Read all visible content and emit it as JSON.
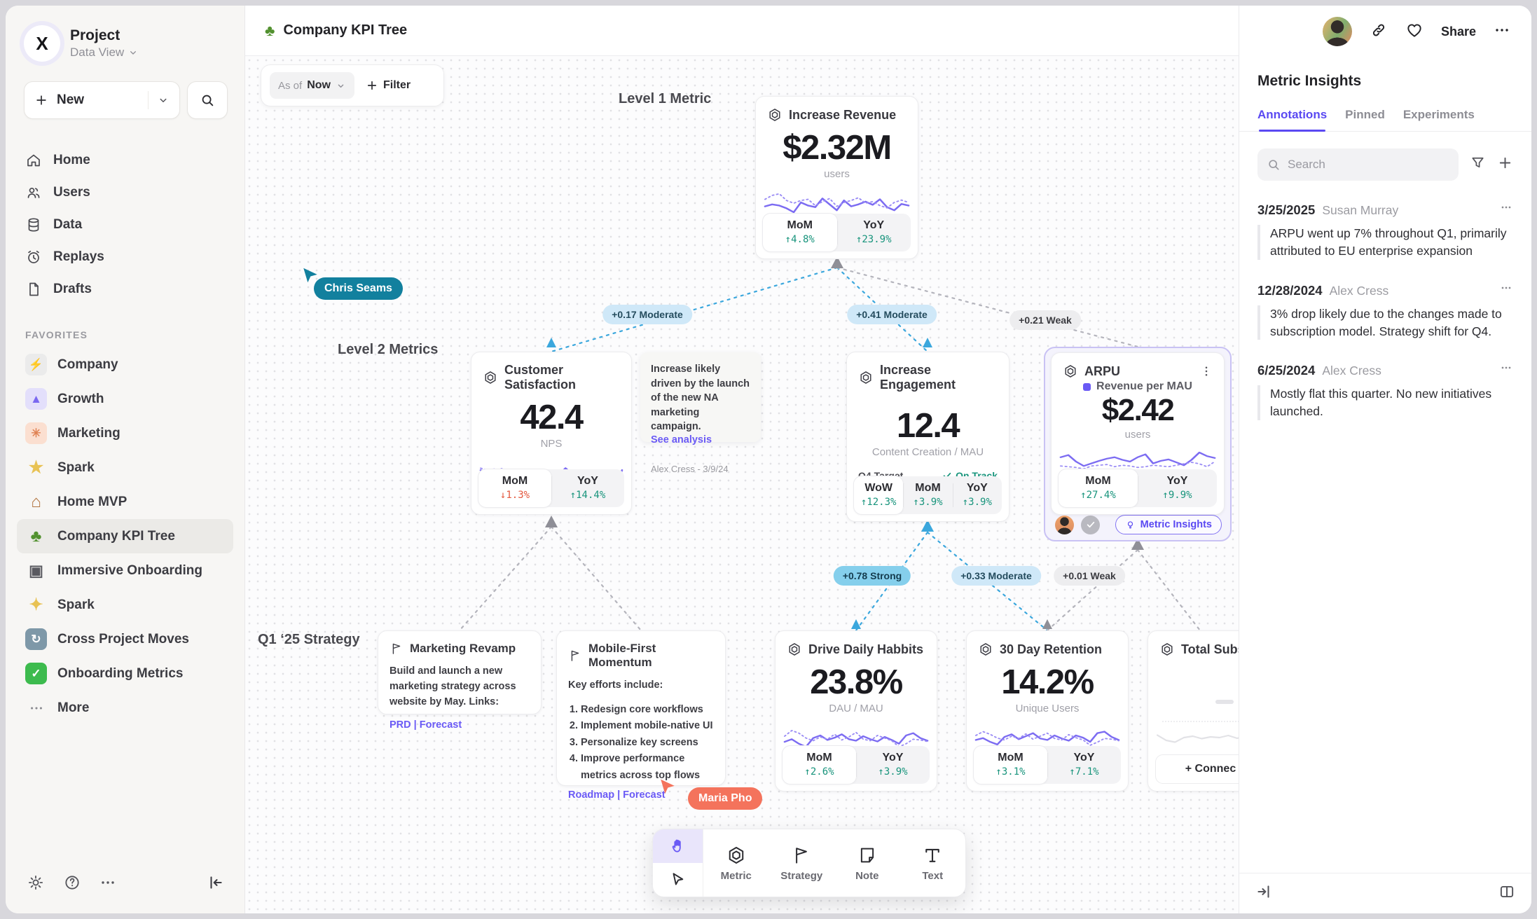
{
  "sidebar": {
    "project": {
      "logo_glyph": "X",
      "title": "Project",
      "subtitle": "Data View"
    },
    "new_label": "New",
    "nav": [
      {
        "label": "Home"
      },
      {
        "label": "Users"
      },
      {
        "label": "Data"
      },
      {
        "label": "Replays"
      },
      {
        "label": "Drafts"
      }
    ],
    "favorites_label": "FAVORITES",
    "favorites": [
      {
        "icon": "zap",
        "glyph": "⚡",
        "label": "Company",
        "tile": "#ebebeb",
        "fg": "#5a5a60"
      },
      {
        "icon": "rocket",
        "glyph": "▲",
        "label": "Growth",
        "tile": "#e3dffb",
        "fg": "#7a68f0"
      },
      {
        "icon": "confetti",
        "glyph": "✳",
        "label": "Marketing",
        "tile": "#fbdfd0",
        "fg": "#e08354"
      },
      {
        "icon": "star",
        "glyph": "★",
        "label": "Spark",
        "tile": "transparent",
        "fg": "#e8c254"
      },
      {
        "icon": "house",
        "glyph": "⌂",
        "label": "Home MVP",
        "tile": "transparent",
        "fg": "#b2743f"
      },
      {
        "icon": "tree",
        "glyph": "♣",
        "label": "Company KPI Tree",
        "tile": "transparent",
        "fg": "#52912f"
      },
      {
        "icon": "train",
        "glyph": "▣",
        "label": "Immersive Onboarding",
        "tile": "transparent",
        "fg": "#5a5a60"
      },
      {
        "icon": "sparkles",
        "glyph": "✦",
        "label": "Spark",
        "tile": "transparent",
        "fg": "#e8c254"
      },
      {
        "icon": "cyclone",
        "glyph": "↻",
        "label": "Cross Project Moves",
        "tile": "#7e98a8",
        "fg": "#ffffff"
      },
      {
        "icon": "check",
        "glyph": "✓",
        "label": "Onboarding Metrics",
        "tile": "#3dbb4e",
        "fg": "#ffffff"
      }
    ],
    "more_label": "More"
  },
  "topbar": {
    "tree_glyph": "♣",
    "title": "Company KPI Tree",
    "share_label": "Share"
  },
  "canvas": {
    "asof_label": "As of",
    "asof_value": "Now",
    "filter_label": "Filter",
    "level1_label": "Level 1 Metric",
    "level2_label": "Level 2 Metrics",
    "q1_label": "Q1 ‘25 Strategy",
    "cursors": [
      {
        "name": "Chris Seams",
        "color": "#12809e"
      },
      {
        "name": "Maria Pho",
        "color": "#f4735c"
      }
    ],
    "edges": [
      {
        "label": "+0.17 Moderate"
      },
      {
        "label": "+0.41 Moderate"
      },
      {
        "label": "+0.21 Weak"
      },
      {
        "label": "+0.78 Strong"
      },
      {
        "label": "+0.33 Moderate"
      },
      {
        "label": "+0.01 Weak"
      }
    ],
    "cards": {
      "revenue": {
        "title": "Increase Revenue",
        "value": "$2.32M",
        "unit": "users",
        "stats": [
          {
            "label": "MoM",
            "value": "↑4.8%"
          },
          {
            "label": "YoY",
            "value": "↑23.9%"
          }
        ],
        "spark": [
          [
            40,
            45,
            42,
            35,
            25,
            50,
            42,
            38,
            60,
            45,
            30,
            55,
            40,
            45,
            52,
            44,
            58,
            38,
            30,
            46,
            42
          ],
          [
            58,
            68,
            72,
            55,
            48,
            55,
            58,
            42,
            52,
            60,
            40,
            50,
            55,
            62,
            48,
            52,
            42,
            36,
            50,
            56,
            50
          ]
        ]
      },
      "satisfaction": {
        "title": "Customer Satisfaction",
        "value": "42.4",
        "unit": "NPS",
        "stats": [
          {
            "label": "MoM",
            "value": "↓1.3%"
          },
          {
            "label": "YoY",
            "value": "↑14.4%"
          }
        ],
        "spark": [
          [
            55,
            48,
            52,
            58,
            40,
            30,
            22,
            45,
            38,
            52,
            35,
            42,
            60,
            45,
            50,
            48,
            52,
            38,
            25,
            20,
            55
          ],
          [
            60,
            55,
            58,
            52,
            48,
            45,
            42,
            40,
            44,
            48,
            45,
            42,
            55,
            48,
            46,
            50,
            48,
            40,
            36,
            40,
            52
          ]
        ]
      },
      "note": {
        "text": "Increase likely driven by the launch of the new NA marketing campaign.",
        "link": "See analysis",
        "author": "Alex Cress - 3/9/24"
      },
      "engagement": {
        "title": "Increase Engagement",
        "value": "12.4",
        "unit": "Content Creation / MAU",
        "target_label": "Q4 Target",
        "target_status": "On Track",
        "target_pct": 28,
        "stats": [
          {
            "label": "WoW",
            "value": "↑12.3%"
          },
          {
            "label": "MoM",
            "value": "↑3.9%"
          },
          {
            "label": "YoY",
            "value": "↑3.9%"
          }
        ]
      },
      "arpu": {
        "title": "ARPU",
        "legend": "Revenue per MAU",
        "value": "$2.42",
        "unit": "users",
        "stats": [
          {
            "label": "MoM",
            "value": "↑27.4%"
          },
          {
            "label": "YoY",
            "value": "↑9.9%"
          }
        ],
        "insights_label": "Metric Insights",
        "spark": [
          [
            62,
            68,
            50,
            38,
            45,
            52,
            58,
            62,
            55,
            50,
            62,
            70,
            45,
            52,
            56,
            48,
            40,
            55,
            75,
            65,
            60
          ],
          [
            38,
            36,
            34,
            30,
            38,
            40,
            42,
            36,
            40,
            38,
            34,
            36,
            40,
            38,
            36,
            40,
            44,
            48,
            44,
            36,
            50
          ]
        ]
      },
      "marketing_revamp": {
        "title": "Marketing Revamp",
        "body": "Build and launch a new marketing strategy across website by May. Links:",
        "links_label": "PRD | Forecast"
      },
      "mobile_first": {
        "title": "Mobile-First Momentum",
        "intro": "Key efforts include:",
        "items": [
          "Redesign core workflows",
          "Implement mobile-native UI",
          "Personalize key screens",
          "Improve performance metrics across top flows"
        ],
        "links_label": "Roadmap | Forecast"
      },
      "daily_habits": {
        "title": "Drive Daily Habbits",
        "value": "23.8%",
        "unit": "DAU / MAU",
        "stats": [
          {
            "label": "MoM",
            "value": "↑2.6%"
          },
          {
            "label": "YoY",
            "value": "↑3.9%"
          }
        ],
        "spark": [
          [
            35,
            42,
            30,
            22,
            45,
            52,
            40,
            46,
            55,
            42,
            38,
            50,
            42,
            36,
            48,
            40,
            30,
            52,
            58,
            45,
            38
          ],
          [
            50,
            65,
            58,
            45,
            38,
            48,
            42,
            55,
            40,
            48,
            60,
            42,
            38,
            52,
            45,
            38,
            22,
            30,
            42,
            40,
            36
          ]
        ]
      },
      "retention": {
        "title": "30 Day Retention",
        "value": "14.2%",
        "unit": "Unique Users",
        "stats": [
          {
            "label": "MoM",
            "value": "↑3.1%"
          },
          {
            "label": "YoY",
            "value": "↑7.1%"
          }
        ],
        "spark": [
          [
            40,
            45,
            35,
            28,
            48,
            55,
            42,
            50,
            58,
            44,
            40,
            52,
            44,
            38,
            52,
            46,
            35,
            58,
            62,
            48,
            40
          ],
          [
            52,
            62,
            55,
            45,
            40,
            50,
            44,
            56,
            42,
            50,
            58,
            44,
            40,
            54,
            46,
            40,
            26,
            34,
            44,
            42,
            38
          ]
        ]
      },
      "subscriptions": {
        "title": "Total Subscript",
        "connect_label": "+ Connec",
        "spark": [
          [
            45,
            30,
            25,
            38,
            42,
            35,
            40,
            38,
            44,
            36,
            42,
            46,
            40
          ]
        ]
      }
    }
  },
  "toolbar": {
    "tools": [
      {
        "label": "Metric"
      },
      {
        "label": "Strategy"
      },
      {
        "label": "Note"
      },
      {
        "label": "Text"
      }
    ]
  },
  "panel": {
    "title": "Metric Insights",
    "tabs": [
      {
        "label": "Annotations"
      },
      {
        "label": "Pinned"
      },
      {
        "label": "Experiments"
      }
    ],
    "search_placeholder": "Search",
    "annotations": [
      {
        "date": "3/25/2025",
        "author": "Susan Murray",
        "text": "ARPU went up 7% throughout Q1, primarily attributed to EU enterprise expansion"
      },
      {
        "date": "12/28/2024",
        "author": "Alex Cress",
        "text": "3% drop likely due to the changes made to subscription model. Strategy shift for Q4."
      },
      {
        "date": "6/25/2024",
        "author": "Alex Cress",
        "text": "Mostly flat this quarter. No new initiatives launched."
      }
    ]
  }
}
